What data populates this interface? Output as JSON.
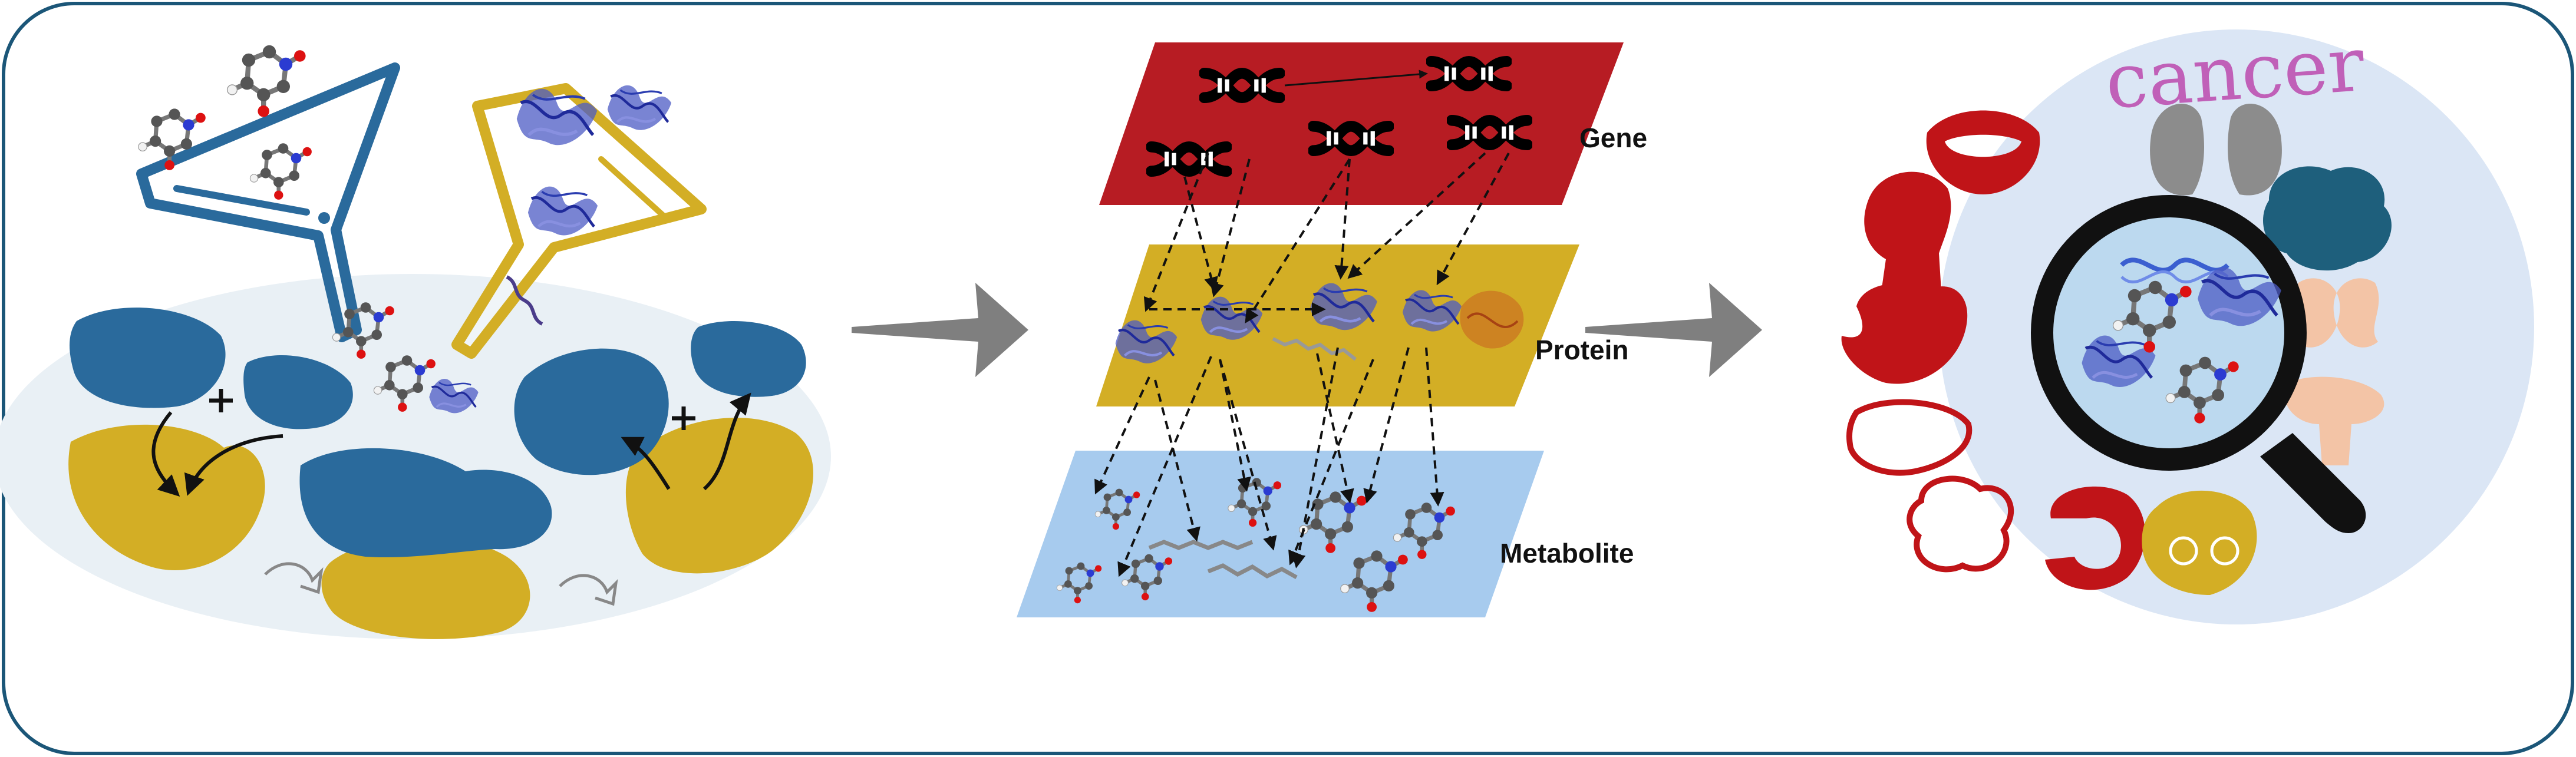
{
  "layers": {
    "gene": "Gene",
    "protein": "Protein",
    "metabolite": "Metabolite"
  },
  "lens_word": "cancer",
  "colors": {
    "frame": "#1b5678",
    "gene_layer": "#b71c23",
    "protein_layer": "#d3ae25",
    "metabolite_layer": "#a7cbee",
    "receptor_blue": "#2a6a9c",
    "receptor_gold": "#d3ae25",
    "arrow_gray": "#7f7f7f",
    "organ_red": "#c01418",
    "organ_teal": "#1e5f7c",
    "organ_peach": "#f3c4a6",
    "organ_gray": "#8c8c8c",
    "lens_bg": "#dbe6f5"
  },
  "icons": {
    "filter_left": "funnel-icon",
    "filter_right": "funnel-icon",
    "dna": "dna-icon",
    "protein": "protein-structure-icon",
    "molecule": "molecule-icon",
    "magnifier": "magnifying-glass-icon"
  }
}
